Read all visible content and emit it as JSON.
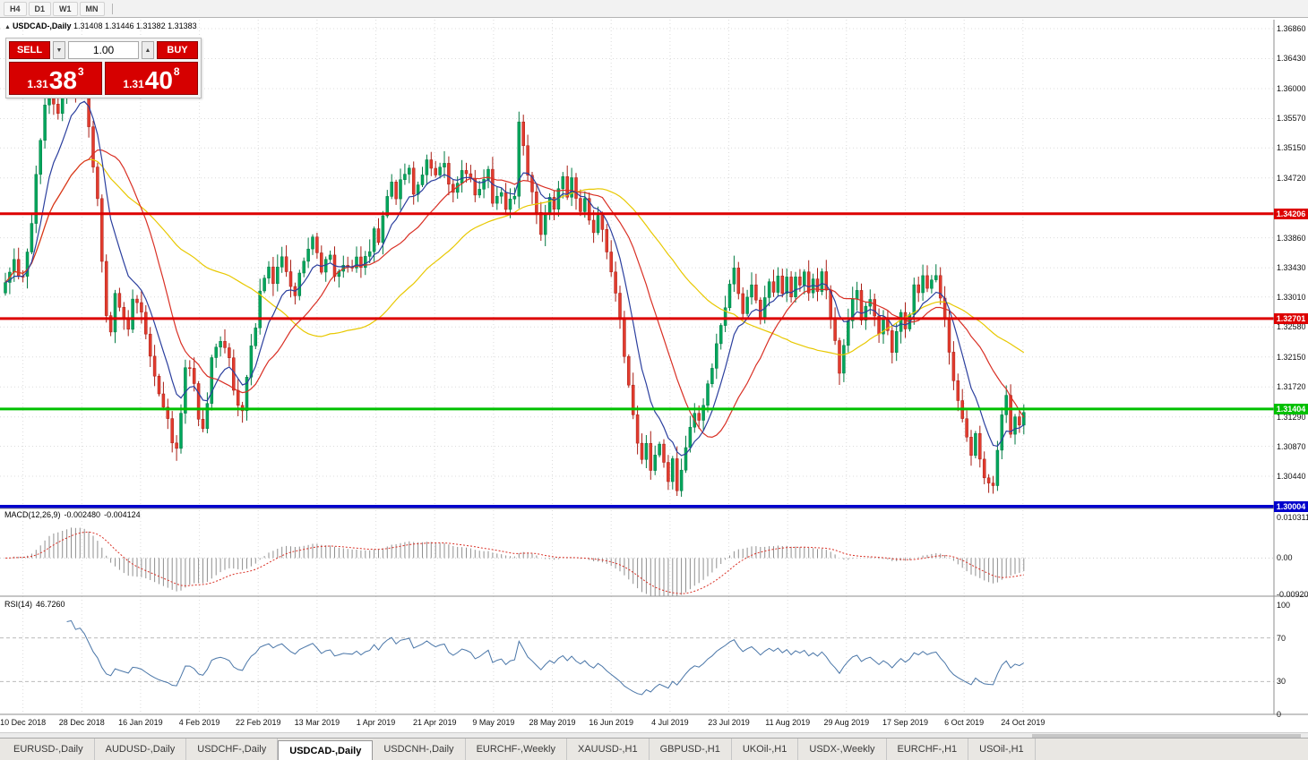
{
  "toolbar": {
    "timeframes": [
      "H4",
      "D1",
      "W1",
      "MN"
    ]
  },
  "chart": {
    "marker": "▲",
    "symbol_period": "USDCAD-,Daily",
    "ohlc_line": "1.31408 1.31446 1.31382 1.31383"
  },
  "trade_panel": {
    "sell_label": "SELL",
    "buy_label": "BUY",
    "volume": "1.00",
    "spinner_down": "▼",
    "spinner_up": "▲",
    "sell_price": {
      "prefix": "1.31",
      "big": "38",
      "sup": "3"
    },
    "buy_price": {
      "prefix": "1.31",
      "big": "40",
      "sup": "8"
    }
  },
  "indicators": {
    "macd": {
      "name": "MACD(12,26,9)",
      "main_value": "-0.002480",
      "signal_value": "-0.004124",
      "axis_labels": [
        "0.010311",
        "0.00",
        "-0.009203"
      ]
    },
    "rsi": {
      "name": "RSI(14)",
      "value": "46.7260",
      "axis_labels": [
        "100",
        "70",
        "30",
        "0"
      ]
    }
  },
  "price_axis": {
    "tick_labels": [
      "1.36860",
      "1.36430",
      "1.36000",
      "1.35570",
      "1.35150",
      "1.34720",
      "1.33860",
      "1.33430",
      "1.33010",
      "1.32580",
      "1.32150",
      "1.31720",
      "1.31290",
      "1.30870",
      "1.30440"
    ]
  },
  "hlines": [
    {
      "label": "1.34206",
      "value": 1.34206,
      "color": "#dd0000",
      "width": 3
    },
    {
      "label": "1.32701",
      "value": 1.32701,
      "color": "#dd0000",
      "width": 3
    },
    {
      "label": "1.31404",
      "value": 1.31404,
      "color": "#00c000",
      "width": 3
    },
    {
      "label": "1.30004",
      "value": 1.30004,
      "color": "#0000cc",
      "width": 4
    }
  ],
  "date_axis": {
    "labels": [
      "10 Dec 2018",
      "28 Dec 2018",
      "16 Jan 2019",
      "4 Feb 2019",
      "22 Feb 2019",
      "13 Mar 2019",
      "1 Apr 2019",
      "21 Apr 2019",
      "9 May 2019",
      "28 May 2019",
      "16 Jun 2019",
      "4 Jul 2019",
      "23 Jul 2019",
      "11 Aug 2019",
      "29 Aug 2019",
      "17 Sep 2019",
      "6 Oct 2019",
      "24 Oct 2019"
    ]
  },
  "tabs": {
    "items": [
      "EURUSD-,Daily",
      "AUDUSD-,Daily",
      "USDCHF-,Daily",
      "USDCAD-,Daily",
      "USDCNH-,Daily",
      "EURCHF-,Weekly",
      "XAUUSD-,H1",
      "GBPUSD-,H1",
      "UKOil-,H1",
      "USDX-,Weekly",
      "EURCHF-,H1",
      "USOil-,H1"
    ],
    "active_index": 3
  },
  "chart_data": {
    "type": "candlestick",
    "title": "USDCAD-,Daily",
    "bars": 233,
    "y_range": [
      1.298,
      1.369
    ],
    "current_ohlc": {
      "open": 1.31408,
      "high": 1.31446,
      "low": 1.31382,
      "close": 1.31383
    },
    "bid": 1.31383,
    "ask": 1.31408,
    "support_resistance": [
      1.34206,
      1.32701,
      1.31404,
      1.30004
    ],
    "candle_colors": {
      "up_fill": "#00a65c",
      "up_stroke": "#007a42",
      "down_fill": "#e23b2e",
      "down_stroke": "#a81e14"
    },
    "moving_averages": [
      {
        "period": 9,
        "type": "ema",
        "color": "#2b3f9e"
      },
      {
        "period": 20,
        "type": "sma",
        "color": "#d93025"
      },
      {
        "period": 50,
        "type": "sma",
        "color": "#e8c800"
      }
    ],
    "macd_params": [
      12,
      26,
      9
    ],
    "rsi_period": 14,
    "rsi_levels": [
      70,
      30
    ],
    "close_waypoints": [
      [
        0,
        1.332
      ],
      [
        2,
        1.3355
      ],
      [
        3,
        1.333
      ],
      [
        4,
        1.3335
      ],
      [
        5,
        1.337
      ],
      [
        6,
        1.341
      ],
      [
        7,
        1.348
      ],
      [
        8,
        1.353
      ],
      [
        9,
        1.3575
      ],
      [
        10,
        1.36
      ],
      [
        11,
        1.358
      ],
      [
        12,
        1.356
      ],
      [
        13,
        1.359
      ],
      [
        14,
        1.3615
      ],
      [
        15,
        1.3635
      ],
      [
        16,
        1.36
      ],
      [
        17,
        1.362
      ],
      [
        18,
        1.3595
      ],
      [
        19,
        1.3545
      ],
      [
        20,
        1.349
      ],
      [
        21,
        1.344
      ],
      [
        22,
        1.335
      ],
      [
        23,
        1.327
      ],
      [
        24,
        1.3255
      ],
      [
        25,
        1.331
      ],
      [
        26,
        1.329
      ],
      [
        27,
        1.327
      ],
      [
        28,
        1.3255
      ],
      [
        29,
        1.33
      ],
      [
        30,
        1.329
      ],
      [
        31,
        1.328
      ],
      [
        32,
        1.325
      ],
      [
        33,
        1.322
      ],
      [
        34,
        1.319
      ],
      [
        35,
        1.316
      ],
      [
        36,
        1.314
      ],
      [
        37,
        1.3125
      ],
      [
        38,
        1.3095
      ],
      [
        39,
        1.3085
      ],
      [
        40,
        1.3135
      ],
      [
        41,
        1.32
      ],
      [
        42,
        1.3195
      ],
      [
        43,
        1.3175
      ],
      [
        44,
        1.313
      ],
      [
        45,
        1.311
      ],
      [
        46,
        1.315
      ],
      [
        47,
        1.321
      ],
      [
        48,
        1.3225
      ],
      [
        49,
        1.324
      ],
      [
        50,
        1.323
      ],
      [
        51,
        1.3215
      ],
      [
        52,
        1.3165
      ],
      [
        53,
        1.315
      ],
      [
        54,
        1.3135
      ],
      [
        55,
        1.319
      ],
      [
        56,
        1.323
      ],
      [
        57,
        1.326
      ],
      [
        58,
        1.331
      ],
      [
        59,
        1.333
      ],
      [
        60,
        1.334
      ],
      [
        61,
        1.332
      ],
      [
        62,
        1.334
      ],
      [
        63,
        1.3355
      ],
      [
        64,
        1.334
      ],
      [
        66,
        1.33
      ],
      [
        67,
        1.3335
      ],
      [
        68,
        1.3355
      ],
      [
        69,
        1.337
      ],
      [
        70,
        1.3385
      ],
      [
        72,
        1.334
      ],
      [
        74,
        1.3365
      ],
      [
        75,
        1.333
      ],
      [
        77,
        1.3345
      ],
      [
        79,
        1.334
      ],
      [
        80,
        1.336
      ],
      [
        81,
        1.334
      ],
      [
        83,
        1.337
      ],
      [
        84,
        1.34
      ],
      [
        85,
        1.338
      ],
      [
        86,
        1.342
      ],
      [
        87,
        1.3445
      ],
      [
        88,
        1.3465
      ],
      [
        89,
        1.3445
      ],
      [
        90,
        1.347
      ],
      [
        92,
        1.3485
      ],
      [
        93,
        1.345
      ],
      [
        95,
        1.348
      ],
      [
        96,
        1.3495
      ],
      [
        98,
        1.348
      ],
      [
        100,
        1.3495
      ],
      [
        101,
        1.3465
      ],
      [
        102,
        1.345
      ],
      [
        104,
        1.348
      ],
      [
        106,
        1.347
      ],
      [
        107,
        1.3445
      ],
      [
        108,
        1.346
      ],
      [
        110,
        1.348
      ],
      [
        111,
        1.3435
      ],
      [
        113,
        1.345
      ],
      [
        114,
        1.343
      ],
      [
        116,
        1.3445
      ],
      [
        117,
        1.355
      ],
      [
        118,
        1.352
      ],
      [
        119,
        1.348
      ],
      [
        120,
        1.345
      ],
      [
        121,
        1.3425
      ],
      [
        122,
        1.339
      ],
      [
        123,
        1.342
      ],
      [
        124,
        1.344
      ],
      [
        125,
        1.3425
      ],
      [
        126,
        1.3455
      ],
      [
        127,
        1.347
      ],
      [
        128,
        1.3445
      ],
      [
        129,
        1.3475
      ],
      [
        130,
        1.344
      ],
      [
        131,
        1.342
      ],
      [
        132,
        1.344
      ],
      [
        133,
        1.341
      ],
      [
        134,
        1.339
      ],
      [
        135,
        1.342
      ],
      [
        136,
        1.34
      ],
      [
        137,
        1.337
      ],
      [
        138,
        1.334
      ],
      [
        139,
        1.331
      ],
      [
        140,
        1.327
      ],
      [
        141,
        1.322
      ],
      [
        142,
        1.3175
      ],
      [
        143,
        1.313
      ],
      [
        144,
        1.309
      ],
      [
        145,
        1.307
      ],
      [
        146,
        1.309
      ],
      [
        147,
        1.3055
      ],
      [
        148,
        1.3075
      ],
      [
        149,
        1.309
      ],
      [
        150,
        1.306
      ],
      [
        151,
        1.304
      ],
      [
        152,
        1.307
      ],
      [
        153,
        1.3025
      ],
      [
        154,
        1.305
      ],
      [
        155,
        1.3085
      ],
      [
        156,
        1.311
      ],
      [
        157,
        1.3135
      ],
      [
        158,
        1.312
      ],
      [
        159,
        1.315
      ],
      [
        160,
        1.3175
      ],
      [
        161,
        1.32
      ],
      [
        162,
        1.323
      ],
      [
        163,
        1.326
      ],
      [
        164,
        1.329
      ],
      [
        165,
        1.332
      ],
      [
        166,
        1.3345
      ],
      [
        167,
        1.3305
      ],
      [
        168,
        1.328
      ],
      [
        169,
        1.33
      ],
      [
        170,
        1.332
      ],
      [
        171,
        1.33
      ],
      [
        172,
        1.3275
      ],
      [
        173,
        1.33
      ],
      [
        174,
        1.332
      ],
      [
        175,
        1.3305
      ],
      [
        176,
        1.333
      ],
      [
        177,
        1.331
      ],
      [
        178,
        1.333
      ],
      [
        179,
        1.3305
      ],
      [
        180,
        1.333
      ],
      [
        181,
        1.3315
      ],
      [
        182,
        1.3335
      ],
      [
        183,
        1.3305
      ],
      [
        184,
        1.333
      ],
      [
        185,
        1.331
      ],
      [
        186,
        1.3335
      ],
      [
        187,
        1.331
      ],
      [
        188,
        1.327
      ],
      [
        189,
        1.324
      ],
      [
        190,
        1.319
      ],
      [
        191,
        1.3235
      ],
      [
        192,
        1.327
      ],
      [
        193,
        1.3295
      ],
      [
        194,
        1.331
      ],
      [
        195,
        1.327
      ],
      [
        196,
        1.329
      ],
      [
        197,
        1.33
      ],
      [
        198,
        1.327
      ],
      [
        199,
        1.3245
      ],
      [
        200,
        1.327
      ],
      [
        201,
        1.325
      ],
      [
        202,
        1.3225
      ],
      [
        203,
        1.3255
      ],
      [
        204,
        1.3275
      ],
      [
        205,
        1.3255
      ],
      [
        206,
        1.328
      ],
      [
        207,
        1.332
      ],
      [
        208,
        1.3305
      ],
      [
        209,
        1.333
      ],
      [
        210,
        1.331
      ],
      [
        211,
        1.333
      ],
      [
        212,
        1.3335
      ],
      [
        213,
        1.33
      ],
      [
        214,
        1.327
      ],
      [
        215,
        1.322
      ],
      [
        216,
        1.318
      ],
      [
        217,
        1.3155
      ],
      [
        218,
        1.313
      ],
      [
        219,
        1.31
      ],
      [
        220,
        1.3075
      ],
      [
        221,
        1.3105
      ],
      [
        222,
        1.307
      ],
      [
        223,
        1.3045
      ],
      [
        224,
        1.3035
      ],
      [
        225,
        1.303
      ],
      [
        226,
        1.3085
      ],
      [
        227,
        1.313
      ],
      [
        228,
        1.316
      ],
      [
        229,
        1.3105
      ],
      [
        230,
        1.3125
      ],
      [
        231,
        1.3115
      ],
      [
        232,
        1.3138
      ]
    ]
  }
}
